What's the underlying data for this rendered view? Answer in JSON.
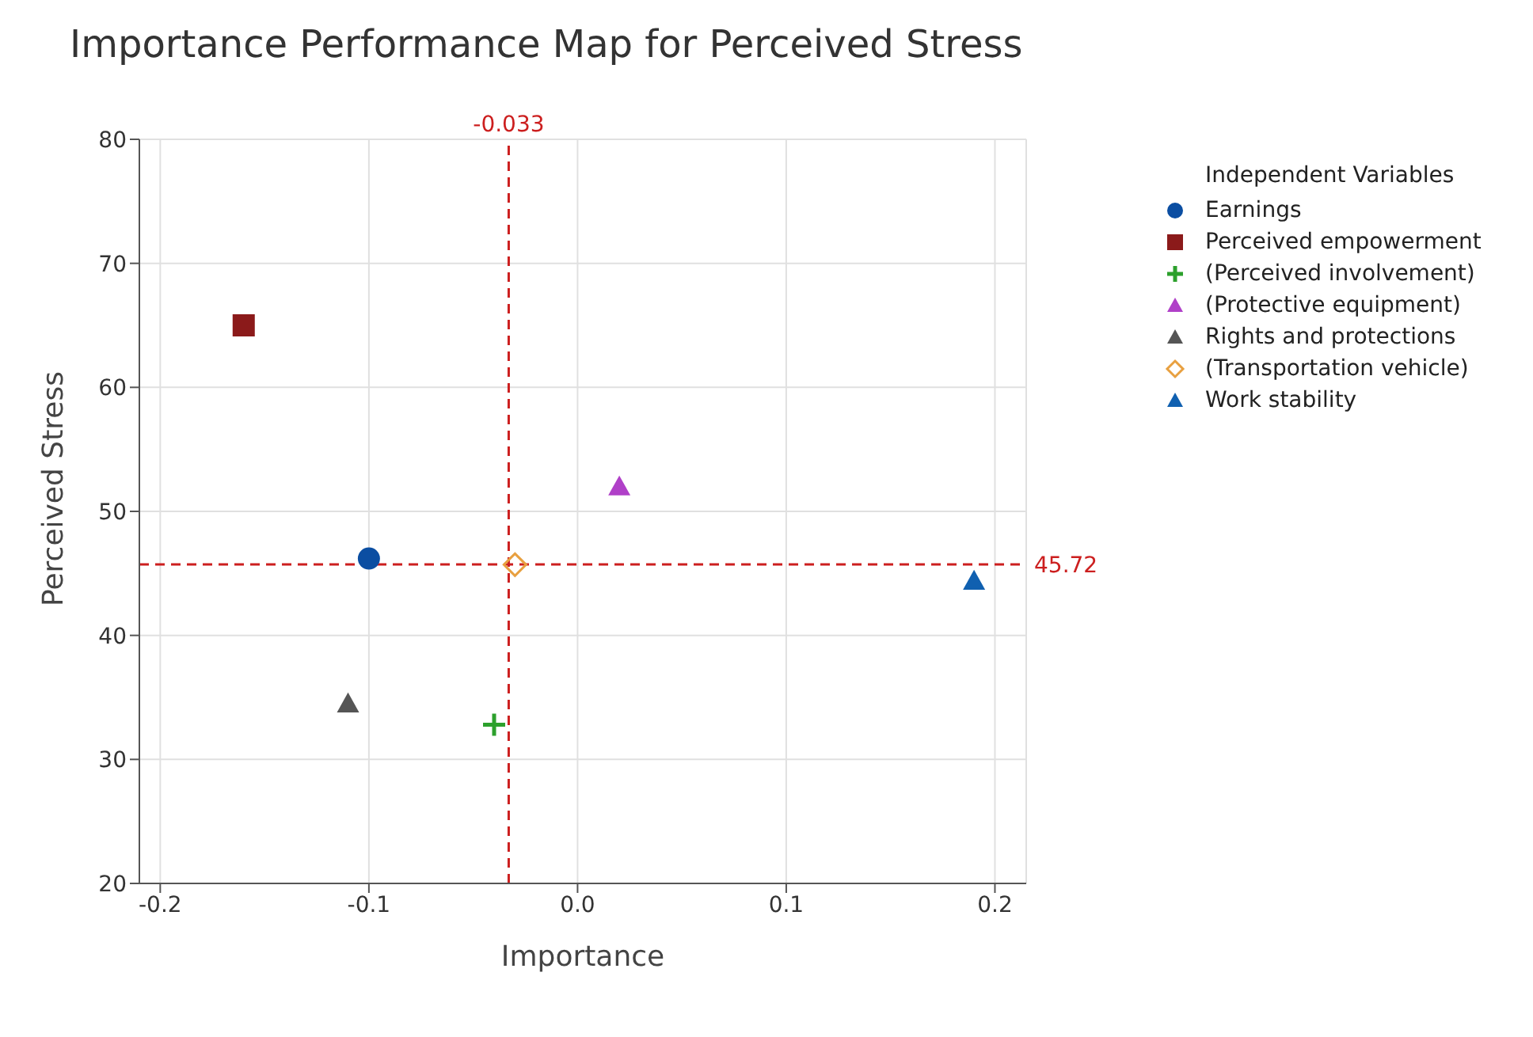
{
  "chart_data": {
    "type": "scatter",
    "title": "Importance Performance Map for Perceived Stress",
    "xlabel": "Importance",
    "ylabel": "Perceived Stress",
    "legend_title": "Independent Variables",
    "legend": "right",
    "grid": true,
    "xlim": [
      -0.21,
      0.215
    ],
    "xticks": [
      -0.2,
      -0.1,
      {
        "value": 0,
        "label": "0.0"
      },
      0.1,
      0.2
    ],
    "ylim": [
      20,
      80
    ],
    "yticks": [
      20,
      30,
      40,
      50,
      60,
      70,
      80
    ],
    "series": [
      {
        "name": "Earnings",
        "color": "#0b4ea2",
        "marker": "circle",
        "x": [
          -0.1
        ],
        "values": [
          46.2
        ]
      },
      {
        "name": "Perceived empowerment",
        "color": "#8b1a1a",
        "marker": "square",
        "x": [
          -0.16
        ],
        "values": [
          65
        ]
      },
      {
        "name": "(Perceived involvement)",
        "color": "#2ca02c",
        "marker": "cross",
        "x": [
          -0.04
        ],
        "values": [
          32.8
        ]
      },
      {
        "name": "(Protective equipment)",
        "color": "#b040c8",
        "marker": "triangle",
        "x": [
          0.02
        ],
        "values": [
          52
        ]
      },
      {
        "name": "Rights and protections",
        "color": "#555555",
        "marker": "triangle",
        "x": [
          -0.11
        ],
        "values": [
          34.5
        ]
      },
      {
        "name": "(Transportation vehicle)",
        "color": "#e8a040",
        "marker": "diamond",
        "x": [
          -0.03
        ],
        "values": [
          45.7
        ]
      },
      {
        "name": "Work stability",
        "color": "#1060b0",
        "marker": "triangle",
        "x": [
          0.19
        ],
        "values": [
          44.4
        ]
      }
    ],
    "ref_lines": [
      {
        "axis": "x",
        "value": -0.033,
        "label": "-0.033",
        "color": "#cc1f1f",
        "line_style": "dashed"
      },
      {
        "axis": "y",
        "value": 45.72,
        "label": "45.72",
        "color": "#cc1f1f",
        "line_style": "dashed"
      }
    ]
  }
}
